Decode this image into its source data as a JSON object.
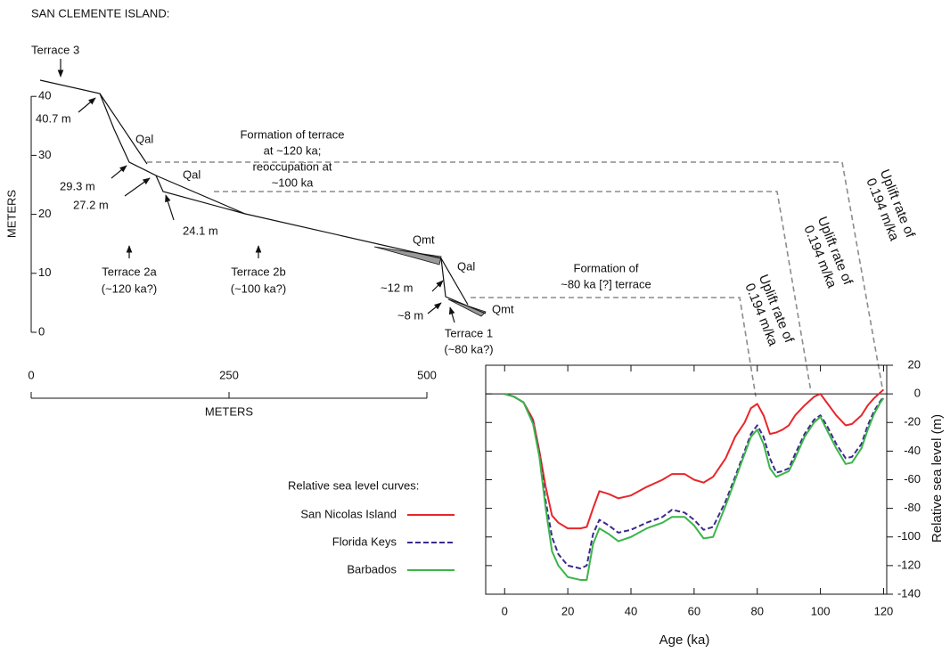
{
  "profile": {
    "title": "SAN CLEMENTE ISLAND:",
    "ylabel": "METERS",
    "yticks": [
      0,
      10,
      20,
      30,
      40
    ],
    "xlabel": "METERS",
    "xticks": [
      0,
      250,
      500
    ],
    "labels": [
      "Terrace 3",
      "40.7 m",
      "Qal",
      "29.3 m",
      "Qal",
      "27.2 m",
      "24.1 m",
      "Terrace 2a",
      "(~120 ka?)",
      "Terrace 2b",
      "(~100 ka?)",
      "Formation of terrace",
      "at ~120 ka;",
      "reoccupation at",
      "~100 ka",
      "Qmt",
      "Qal",
      "~12 m",
      "~8 m",
      "Qmt",
      "Terrace 1",
      "(~80 ka?)",
      "Formation of",
      "~80 ka [?] terrace",
      "Uplift rate of",
      "0.194 m/ka",
      "Uplift rate of",
      "0.194 m/ka",
      "Uplift rate of",
      "0.194 m/ka"
    ]
  },
  "chart_data": {
    "type": "line",
    "xlabel": "Age (ka)",
    "ylabel": "Relative sea level (m)",
    "legend_title": "Relative sea level curves:",
    "x": [
      0,
      3,
      6,
      9,
      11,
      13,
      15,
      17,
      20,
      24,
      26,
      28,
      30,
      33,
      36,
      40,
      45,
      50,
      53,
      57,
      60,
      63,
      66,
      70,
      73,
      76,
      78,
      80,
      82,
      84,
      86,
      88,
      90,
      92,
      95,
      98,
      100,
      102,
      105,
      108,
      110,
      113,
      115,
      117,
      119,
      120
    ],
    "series": [
      {
        "name": "San Nicolas Island",
        "color": "#e8262a",
        "dash": false,
        "values": [
          0,
          -2,
          -6,
          -18,
          -40,
          -65,
          -85,
          -90,
          -94,
          -94,
          -93,
          -80,
          -68,
          -70,
          -73,
          -71,
          -65,
          -60,
          -56,
          -56,
          -60,
          -62,
          -58,
          -45,
          -30,
          -20,
          -10,
          -7,
          -15,
          -28,
          -27,
          -25,
          -22,
          -15,
          -8,
          -2,
          0,
          -6,
          -15,
          -22,
          -21,
          -15,
          -8,
          -3,
          1,
          3
        ]
      },
      {
        "name": "Florida Keys",
        "color": "#3b2a8c",
        "dash": true,
        "values": [
          0,
          -2,
          -6,
          -20,
          -42,
          -75,
          -100,
          -112,
          -120,
          -122,
          -120,
          -98,
          -88,
          -92,
          -97,
          -95,
          -90,
          -86,
          -81,
          -83,
          -88,
          -95,
          -93,
          -75,
          -58,
          -40,
          -28,
          -22,
          -30,
          -45,
          -55,
          -54,
          -52,
          -42,
          -28,
          -18,
          -15,
          -22,
          -35,
          -45,
          -44,
          -35,
          -22,
          -12,
          -5,
          -2
        ]
      },
      {
        "name": "Barbados",
        "color": "#3cb54a",
        "dash": false,
        "values": [
          0,
          -2,
          -6,
          -21,
          -44,
          -80,
          -110,
          -120,
          -128,
          -130,
          -130,
          -105,
          -94,
          -98,
          -103,
          -100,
          -94,
          -90,
          -86,
          -86,
          -92,
          -101,
          -100,
          -78,
          -60,
          -42,
          -30,
          -25,
          -35,
          -52,
          -58,
          -56,
          -54,
          -45,
          -30,
          -20,
          -16,
          -25,
          -38,
          -49,
          -48,
          -38,
          -25,
          -14,
          -6,
          -3
        ]
      }
    ],
    "xlim": [
      -6,
      121
    ],
    "ylim": [
      -140,
      20
    ],
    "xticks": [
      0,
      20,
      40,
      60,
      80,
      100,
      120
    ],
    "yticks": [
      -140,
      -120,
      -100,
      -80,
      -60,
      -40,
      -20,
      0,
      20
    ],
    "reference_line": 0
  }
}
